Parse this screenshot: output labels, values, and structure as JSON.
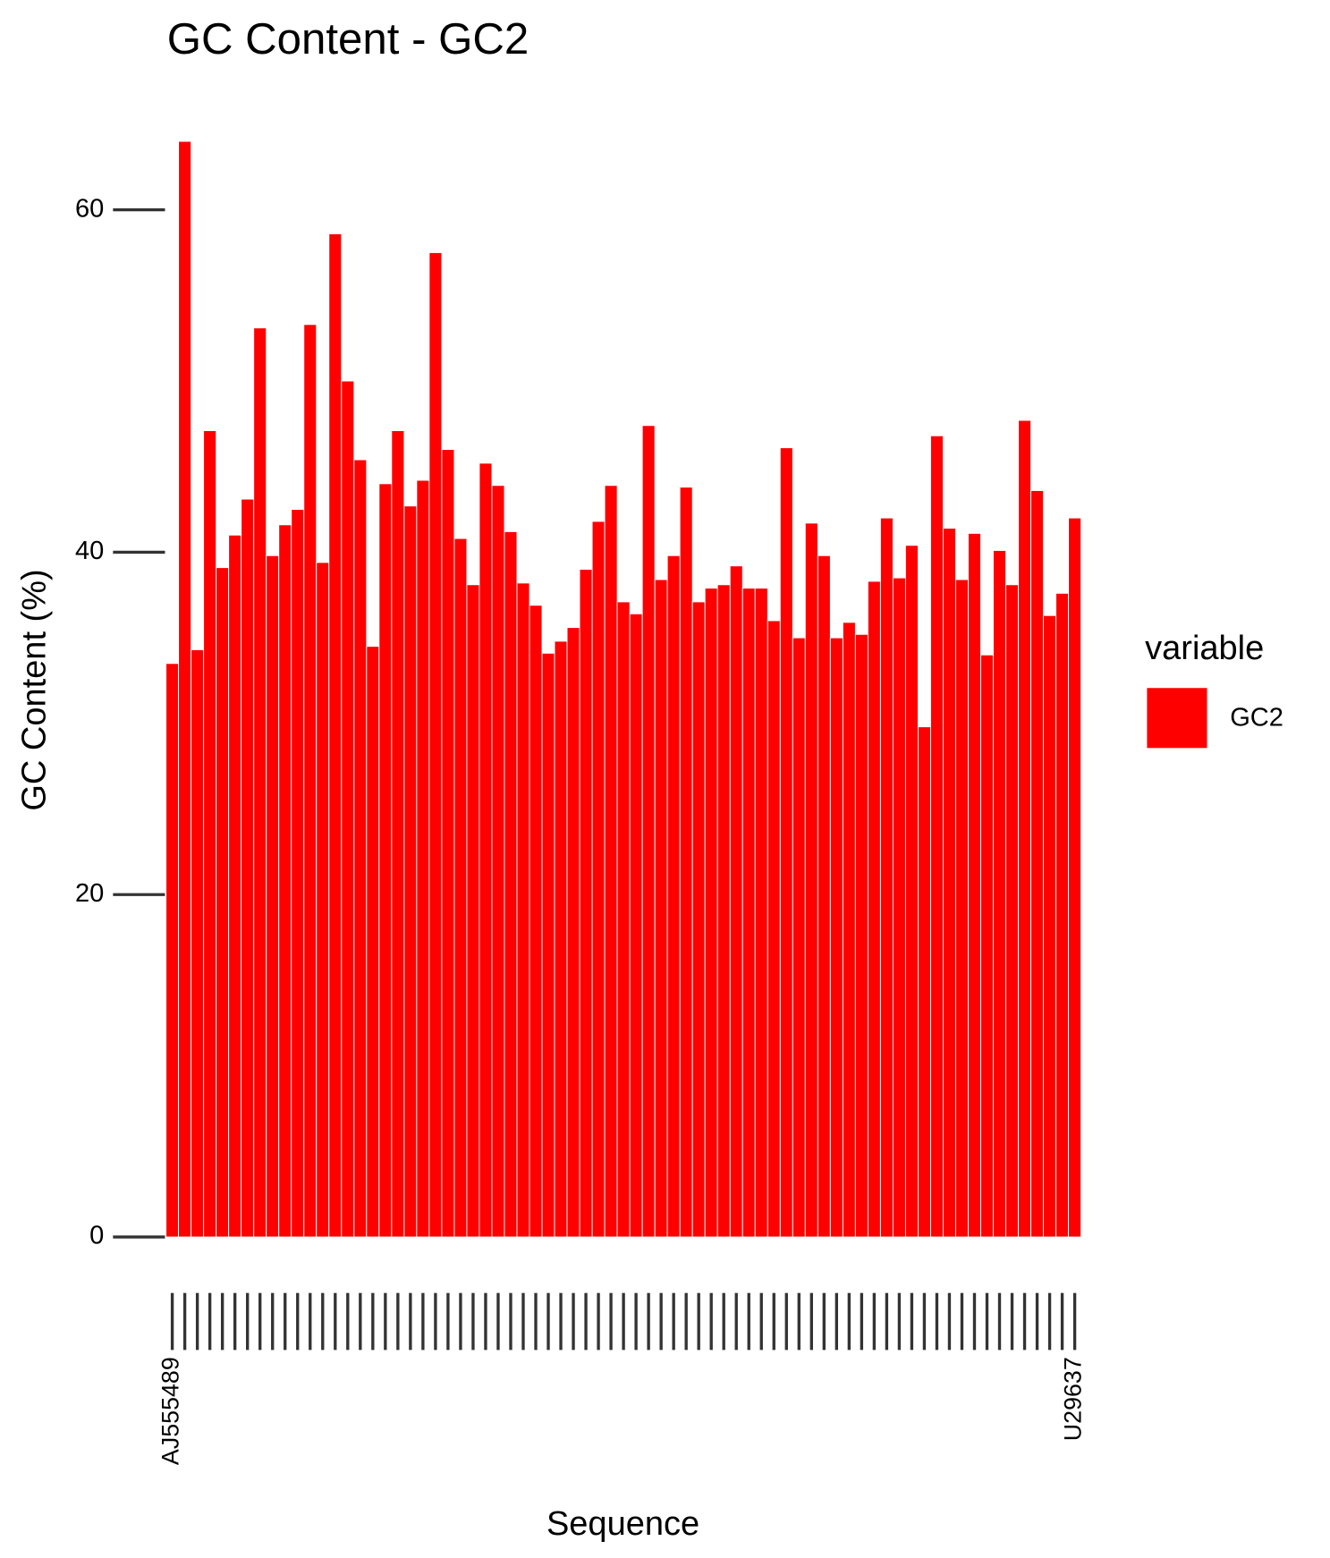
{
  "chart_data": {
    "type": "bar",
    "title": "GC Content - GC2",
    "x_label": "Sequence",
    "y_label": "GC Content (%)",
    "legend_title": "variable",
    "legend": "right",
    "grid": false,
    "categories": [
      "AJ555489",
      null,
      null,
      null,
      null,
      null,
      null,
      null,
      null,
      null,
      null,
      null,
      null,
      null,
      null,
      null,
      null,
      null,
      null,
      null,
      null,
      null,
      null,
      null,
      null,
      null,
      null,
      null,
      null,
      null,
      null,
      null,
      null,
      null,
      null,
      null,
      null,
      null,
      null,
      null,
      null,
      null,
      null,
      null,
      null,
      null,
      null,
      null,
      null,
      null,
      null,
      null,
      null,
      null,
      null,
      null,
      null,
      null,
      null,
      null,
      null,
      null,
      null,
      null,
      null,
      null,
      null,
      null,
      null,
      null,
      null,
      null,
      "U29637"
    ],
    "series": [
      {
        "name": "GC2",
        "color": "#ff0000",
        "values": [
          33.5,
          64.0,
          34.3,
          47.1,
          39.1,
          41.0,
          43.1,
          53.1,
          39.8,
          41.6,
          42.5,
          53.3,
          39.4,
          58.6,
          50.0,
          45.4,
          34.5,
          44.0,
          47.1,
          42.7,
          44.2,
          57.5,
          46.0,
          40.8,
          38.1,
          45.2,
          43.9,
          41.2,
          38.2,
          36.9,
          34.1,
          34.8,
          35.6,
          39.0,
          41.8,
          43.9,
          37.1,
          36.4,
          47.4,
          38.4,
          39.8,
          43.8,
          37.1,
          37.9,
          38.1,
          39.2,
          37.9,
          37.9,
          36.0,
          46.1,
          35.0,
          41.7,
          39.8,
          35.0,
          35.9,
          35.2,
          38.3,
          42.0,
          38.5,
          40.4,
          29.8,
          46.8,
          41.4,
          38.4,
          41.1,
          34.0,
          40.1,
          38.1,
          47.7,
          43.6,
          36.3,
          37.6,
          42.0
        ]
      }
    ],
    "ylim": [
      0,
      65
    ],
    "yticks": [
      0,
      20,
      40,
      60
    ]
  }
}
